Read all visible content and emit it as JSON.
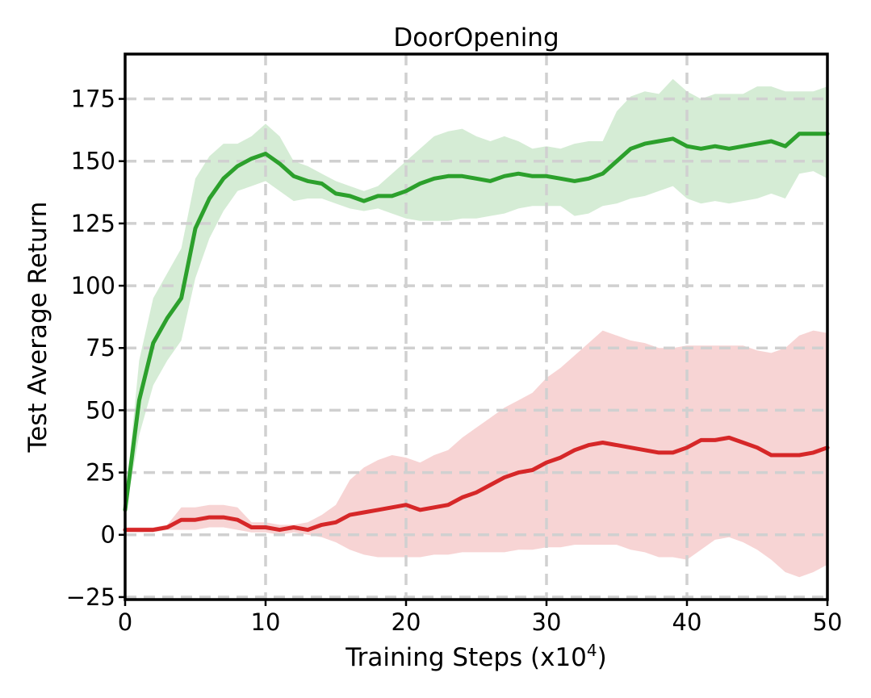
{
  "chart_data": {
    "type": "line",
    "title": "DoorOpening",
    "xlabel": "Training Steps (x10^4)",
    "xlabel_base": "Training Steps (x10",
    "xlabel_sup": "4",
    "xlabel_tail": ")",
    "ylabel": "Test Average Return",
    "xlim": [
      0,
      50
    ],
    "ylim": [
      -26,
      193
    ],
    "xticks": [
      0,
      10,
      20,
      30,
      40,
      50
    ],
    "yticks": [
      -25,
      0,
      25,
      50,
      75,
      100,
      125,
      150,
      175
    ],
    "grid": true,
    "legend": "none",
    "series": [
      {
        "color": "#2ca02c",
        "band_color": "#2ca02c",
        "x": [
          0,
          1,
          2,
          3,
          4,
          5,
          6,
          7,
          8,
          9,
          10,
          11,
          12,
          13,
          14,
          15,
          16,
          17,
          18,
          19,
          20,
          21,
          22,
          23,
          24,
          25,
          26,
          27,
          28,
          29,
          30,
          31,
          32,
          33,
          34,
          35,
          36,
          37,
          38,
          39,
          40,
          41,
          42,
          43,
          44,
          45,
          46,
          47,
          48,
          49,
          50
        ],
        "values": [
          10,
          54,
          77,
          87,
          95,
          123,
          135,
          143,
          148,
          151,
          153,
          149,
          144,
          142,
          141,
          137,
          136,
          134,
          136,
          136,
          138,
          141,
          143,
          144,
          144,
          143,
          142,
          144,
          145,
          144,
          144,
          143,
          142,
          143,
          145,
          150,
          155,
          157,
          158,
          159,
          156,
          155,
          156,
          155,
          156,
          157,
          158,
          156,
          161,
          161,
          161
        ],
        "upper": [
          12,
          70,
          95,
          105,
          115,
          143,
          152,
          157,
          157,
          160,
          165,
          160,
          150,
          148,
          145,
          142,
          140,
          138,
          140,
          145,
          150,
          155,
          160,
          162,
          163,
          160,
          158,
          160,
          158,
          155,
          156,
          155,
          157,
          158,
          158,
          170,
          176,
          178,
          177,
          183,
          178,
          175,
          177,
          177,
          177,
          180,
          180,
          178,
          178,
          178,
          180
        ],
        "lower": [
          8,
          40,
          60,
          70,
          78,
          103,
          119,
          130,
          138,
          140,
          142,
          138,
          134,
          135,
          135,
          133,
          131,
          130,
          131,
          129,
          127,
          126,
          126,
          126,
          127,
          127,
          128,
          129,
          131,
          132,
          132,
          132,
          128,
          129,
          132,
          133,
          135,
          136,
          138,
          140,
          135,
          133,
          134,
          133,
          134,
          135,
          137,
          135,
          145,
          146,
          143
        ]
      },
      {
        "color": "#d62728",
        "band_color": "#d62728",
        "x": [
          0,
          1,
          2,
          3,
          4,
          5,
          6,
          7,
          8,
          9,
          10,
          11,
          12,
          13,
          14,
          15,
          16,
          17,
          18,
          19,
          20,
          21,
          22,
          23,
          24,
          25,
          26,
          27,
          28,
          29,
          30,
          31,
          32,
          33,
          34,
          35,
          36,
          37,
          38,
          39,
          40,
          41,
          42,
          43,
          44,
          45,
          46,
          47,
          48,
          49,
          50
        ],
        "values": [
          2,
          2,
          2,
          3,
          6,
          6,
          7,
          7,
          6,
          3,
          3,
          2,
          3,
          2,
          4,
          5,
          8,
          9,
          10,
          11,
          12,
          10,
          11,
          12,
          15,
          17,
          20,
          23,
          25,
          26,
          29,
          31,
          34,
          36,
          37,
          36,
          35,
          34,
          33,
          33,
          35,
          38,
          38,
          39,
          37,
          35,
          32,
          32,
          32,
          33,
          35
        ],
        "upper": [
          3,
          3,
          3,
          4,
          11,
          11,
          12,
          12,
          11,
          5,
          5,
          4,
          4,
          5,
          8,
          12,
          22,
          27,
          30,
          32,
          31,
          29,
          32,
          34,
          39,
          43,
          47,
          51,
          54,
          57,
          63,
          67,
          72,
          77,
          82,
          80,
          78,
          77,
          75,
          75,
          76,
          76,
          76,
          76,
          76,
          74,
          73,
          75,
          80,
          82,
          81
        ],
        "lower": [
          1,
          1,
          1,
          2,
          2,
          2,
          3,
          3,
          2,
          1,
          1,
          0,
          1,
          0,
          -1,
          -3,
          -6,
          -8,
          -9,
          -9,
          -9,
          -9,
          -8,
          -8,
          -7,
          -7,
          -7,
          -7,
          -6,
          -6,
          -5,
          -5,
          -4,
          -4,
          -4,
          -4,
          -6,
          -7,
          -9,
          -9,
          -10,
          -6,
          -2,
          -1,
          -3,
          -6,
          -10,
          -15,
          -17,
          -15,
          -12
        ]
      }
    ]
  }
}
